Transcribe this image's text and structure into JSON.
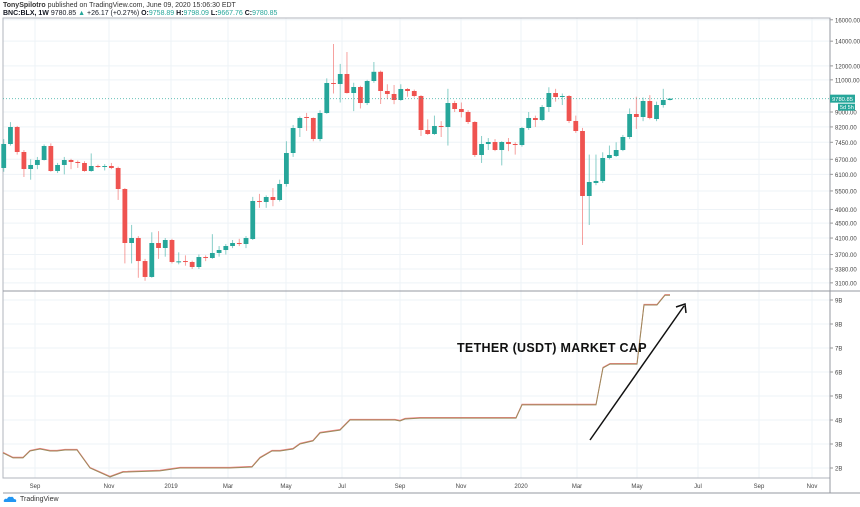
{
  "header": {
    "author": "TonySpilotro",
    "published": "published on TradingView.com, June 09, 2020 15:06:30 EDT",
    "symbol": "BNC:BLX, 1W",
    "last": "9780.85",
    "change": "+26.17 (+0.27%)",
    "o_label": "O:",
    "o": "9758.89",
    "h_label": "H:",
    "h": "9798.09",
    "l_label": "L:",
    "l": "9667.76",
    "c_label": "C:",
    "c": "9780.85"
  },
  "colors": {
    "up": "#26a69a",
    "down": "#ef5350",
    "usdt_line": "#9b8a5c",
    "usdt_line_alt": "#f08080",
    "grid": "#eef3f7",
    "arrow": "#111111"
  },
  "price_axis": {
    "labels": [
      "16000.00",
      "14000.00",
      "12000.00",
      "11000.00",
      "9000.00",
      "8200.00",
      "7450.00",
      "6700.00",
      "6100.00",
      "5500.00",
      "4900.00",
      "4500.00",
      "4100.00",
      "3700.00",
      "3380.00",
      "3100.00"
    ],
    "scale": "log",
    "last_price_tag": "9780.85",
    "countdown_tag": "5d 5h"
  },
  "usdt_axis": {
    "labels": [
      "9B",
      "8B",
      "7B",
      "6B",
      "5B",
      "4B",
      "3B",
      "2B"
    ],
    "values": [
      9,
      8,
      7,
      6,
      5,
      4,
      3,
      2
    ]
  },
  "time_axis": [
    "Sep",
    "Nov",
    "2019",
    "Mar",
    "May",
    "Jul",
    "Sep",
    "Nov",
    "2020",
    "Mar",
    "May",
    "Jul",
    "Sep",
    "Nov"
  ],
  "annotation": "TETHER (USDT) MARKET CAP",
  "footer": {
    "brand": "TradingView",
    "logo_icon": "tradingview-cloud-icon"
  },
  "chart_data": [
    {
      "type": "candlestick",
      "symbol": "BNC:BLX",
      "interval": "1W",
      "scale": "log",
      "ylim": [
        3000,
        16500
      ],
      "grid": true,
      "ohlc": [
        [
          6347,
          7600,
          6200,
          7371
        ],
        [
          7371,
          8450,
          7300,
          8196
        ],
        [
          8196,
          8250,
          6900,
          7013
        ],
        [
          7013,
          7100,
          6000,
          6307
        ],
        [
          6307,
          6700,
          5900,
          6467
        ],
        [
          6467,
          6800,
          6300,
          6671
        ],
        [
          6671,
          7350,
          6650,
          7280
        ],
        [
          7280,
          7400,
          6200,
          6228
        ],
        [
          6228,
          6550,
          6150,
          6467
        ],
        [
          6467,
          6800,
          6100,
          6671
        ],
        [
          6671,
          6720,
          6300,
          6589
        ],
        [
          6589,
          6650,
          6350,
          6548
        ],
        [
          6548,
          6620,
          6200,
          6228
        ],
        [
          6228,
          6950,
          6200,
          6426
        ],
        [
          6426,
          6480,
          6350,
          6386
        ],
        [
          6386,
          6500,
          6250,
          6426
        ],
        [
          6426,
          6550,
          6300,
          6347
        ],
        [
          6347,
          6400,
          5200,
          5567
        ],
        [
          5567,
          5600,
          3500,
          3975
        ],
        [
          3975,
          4450,
          3500,
          4101
        ],
        [
          4101,
          4150,
          3200,
          3552
        ],
        [
          3552,
          3600,
          3140,
          3216
        ],
        [
          3216,
          4250,
          3200,
          3975
        ],
        [
          3975,
          4280,
          3600,
          3853
        ],
        [
          3853,
          4100,
          3650,
          4050
        ],
        [
          4050,
          4080,
          3500,
          3531
        ],
        [
          3531,
          3750,
          3480,
          3545
        ],
        [
          3552,
          3680,
          3450,
          3531
        ],
        [
          3531,
          3560,
          3380,
          3422
        ],
        [
          3422,
          3700,
          3380,
          3642
        ],
        [
          3642,
          3680,
          3550,
          3620
        ],
        [
          3620,
          4200,
          3600,
          3735
        ],
        [
          3735,
          3900,
          3650,
          3805
        ],
        [
          3805,
          3950,
          3700,
          3901
        ],
        [
          3901,
          4050,
          3850,
          3975
        ],
        [
          3975,
          4080,
          3900,
          3950
        ],
        [
          3950,
          4150,
          3850,
          4101
        ],
        [
          4075,
          5300,
          4050,
          5166
        ],
        [
          5166,
          5400,
          4950,
          5134
        ],
        [
          5134,
          5350,
          4950,
          5296
        ],
        [
          5296,
          5600,
          5000,
          5198
        ],
        [
          5198,
          5900,
          5150,
          5744
        ],
        [
          5744,
          7500,
          5650,
          6969
        ],
        [
          6969,
          8300,
          6800,
          8145
        ],
        [
          8145,
          8750,
          7700,
          8670
        ],
        [
          8724,
          8950,
          8000,
          8670
        ],
        [
          8670,
          8700,
          7500,
          7605
        ],
        [
          7605,
          9100,
          7500,
          8944
        ],
        [
          8944,
          11100,
          8900,
          10785
        ],
        [
          10785,
          13755,
          10100,
          10718
        ],
        [
          10718,
          12150,
          9550,
          11408
        ],
        [
          11408,
          13084,
          10100,
          10132
        ],
        [
          10132,
          10800,
          9050,
          10519
        ],
        [
          10519,
          10600,
          9200,
          9519
        ],
        [
          9519,
          11000,
          9400,
          10920
        ],
        [
          10920,
          12295,
          10800,
          11565
        ],
        [
          11565,
          11650,
          9460,
          10260
        ],
        [
          10260,
          10700,
          9750,
          10070
        ],
        [
          10070,
          10650,
          9450,
          9700
        ],
        [
          9700,
          10700,
          9650,
          10389
        ],
        [
          10389,
          10450,
          9900,
          10260
        ],
        [
          10260,
          10350,
          9850,
          9945
        ],
        [
          9945,
          10000,
          7750,
          8044
        ],
        [
          8044,
          8600,
          7800,
          7846
        ],
        [
          7846,
          8800,
          7800,
          8248
        ],
        [
          8248,
          8500,
          7700,
          8196
        ],
        [
          8196,
          10400,
          7300,
          9519
        ],
        [
          9519,
          9650,
          9000,
          9170
        ],
        [
          9170,
          9550,
          8700,
          9000
        ],
        [
          9000,
          9100,
          8350,
          8456
        ],
        [
          8456,
          8500,
          6800,
          6883
        ],
        [
          6883,
          7750,
          6550,
          7371
        ],
        [
          7371,
          7650,
          7100,
          7464
        ],
        [
          7464,
          7600,
          7050,
          7100
        ],
        [
          7100,
          7500,
          6450,
          7464
        ],
        [
          7464,
          7650,
          7050,
          7371
        ],
        [
          7371,
          7450,
          6900,
          7325
        ],
        [
          7325,
          8200,
          7250,
          8145
        ],
        [
          8145,
          9000,
          8050,
          8670
        ],
        [
          8670,
          8800,
          8200,
          8562
        ],
        [
          8562,
          9400,
          8500,
          9285
        ],
        [
          9285,
          10500,
          9000,
          10132
        ],
        [
          10132,
          10400,
          9600,
          9883
        ],
        [
          9883,
          10100,
          9400,
          9945
        ],
        [
          9945,
          10000,
          8400,
          8509
        ],
        [
          8509,
          8800,
          7900,
          7994
        ],
        [
          7994,
          8150,
          3926,
          5329
        ],
        [
          5329,
          6900,
          4448,
          5816
        ],
        [
          5780,
          6900,
          5700,
          5853
        ],
        [
          5853,
          7000,
          5780,
          6755
        ],
        [
          6755,
          7300,
          6700,
          6883
        ],
        [
          6840,
          7450,
          6800,
          7100
        ],
        [
          7100,
          7800,
          7050,
          7700
        ],
        [
          7700,
          9200,
          7600,
          8888
        ],
        [
          8888,
          9900,
          8100,
          8724
        ],
        [
          8724,
          9850,
          8500,
          9639
        ],
        [
          9639,
          10000,
          8600,
          8670
        ],
        [
          8615,
          9600,
          8500,
          9401
        ],
        [
          9401,
          10400,
          9250,
          9700
        ],
        [
          9700,
          9798.09,
          9667.76,
          9780.85
        ]
      ]
    },
    {
      "type": "line",
      "title": "TETHER (USDT) MARKET CAP",
      "yunit": "B",
      "ylim": [
        1.6,
        9.2
      ],
      "x": [
        "2018-07-31",
        "2018-08-10",
        "2018-08-20",
        "2018-08-27",
        "2018-09-06",
        "2018-09-16",
        "2018-09-23",
        "2018-10-01",
        "2018-10-13",
        "2018-10-26",
        "2018-11-15",
        "2018-11-28",
        "2019-01-04",
        "2019-01-24",
        "2019-03-15",
        "2019-04-06",
        "2019-04-14",
        "2019-04-26",
        "2019-05-04",
        "2019-05-17",
        "2019-05-24",
        "2019-06-06",
        "2019-06-13",
        "2019-07-03",
        "2019-07-13",
        "2019-08-27",
        "2019-09-01",
        "2019-09-06",
        "2019-09-21",
        "2019-12-26",
        "2020-01-01",
        "2020-03-15",
        "2020-03-22",
        "2020-03-29",
        "2020-04-25",
        "2020-05-02",
        "2020-05-15",
        "2020-05-23",
        "2020-05-28"
      ],
      "y": [
        2.63,
        2.42,
        2.42,
        2.71,
        2.79,
        2.71,
        2.71,
        2.75,
        2.75,
        2.0,
        1.63,
        1.83,
        1.88,
        2.0,
        2.0,
        2.04,
        2.42,
        2.71,
        2.71,
        2.79,
        3.0,
        3.13,
        3.46,
        3.58,
        4.0,
        4.0,
        3.96,
        4.04,
        4.08,
        4.08,
        4.63,
        4.63,
        6.17,
        6.33,
        6.33,
        8.79,
        8.79,
        9.2,
        9.2
      ]
    }
  ]
}
